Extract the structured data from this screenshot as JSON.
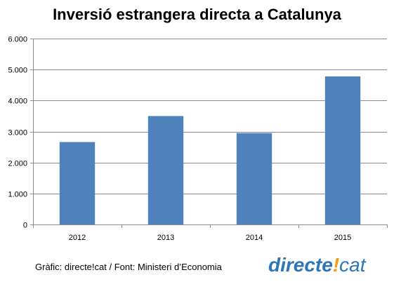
{
  "chart_data": {
    "type": "bar",
    "title": "Inversió estrangera directa a Catalunya",
    "categories": [
      "2012",
      "2013",
      "2014",
      "2015"
    ],
    "values": [
      2660,
      3500,
      2950,
      4780
    ],
    "ylim": [
      0,
      6000
    ],
    "yticks": [
      "0",
      "1.000",
      "2.000",
      "3.000",
      "4.000",
      "5.000",
      "6.000"
    ],
    "grid": true,
    "bar_color": "#4F81BD"
  },
  "footer": {
    "credit": "Gràfic: directe!cat / Font: Ministeri d’Economia",
    "logo_text_main": "directe",
    "logo_text_mark": "!",
    "logo_text_end": "cat"
  },
  "colors": {
    "logo_main": "#2E75B6",
    "logo_mark": "#F39C12",
    "logo_end": "#2E75B6"
  }
}
